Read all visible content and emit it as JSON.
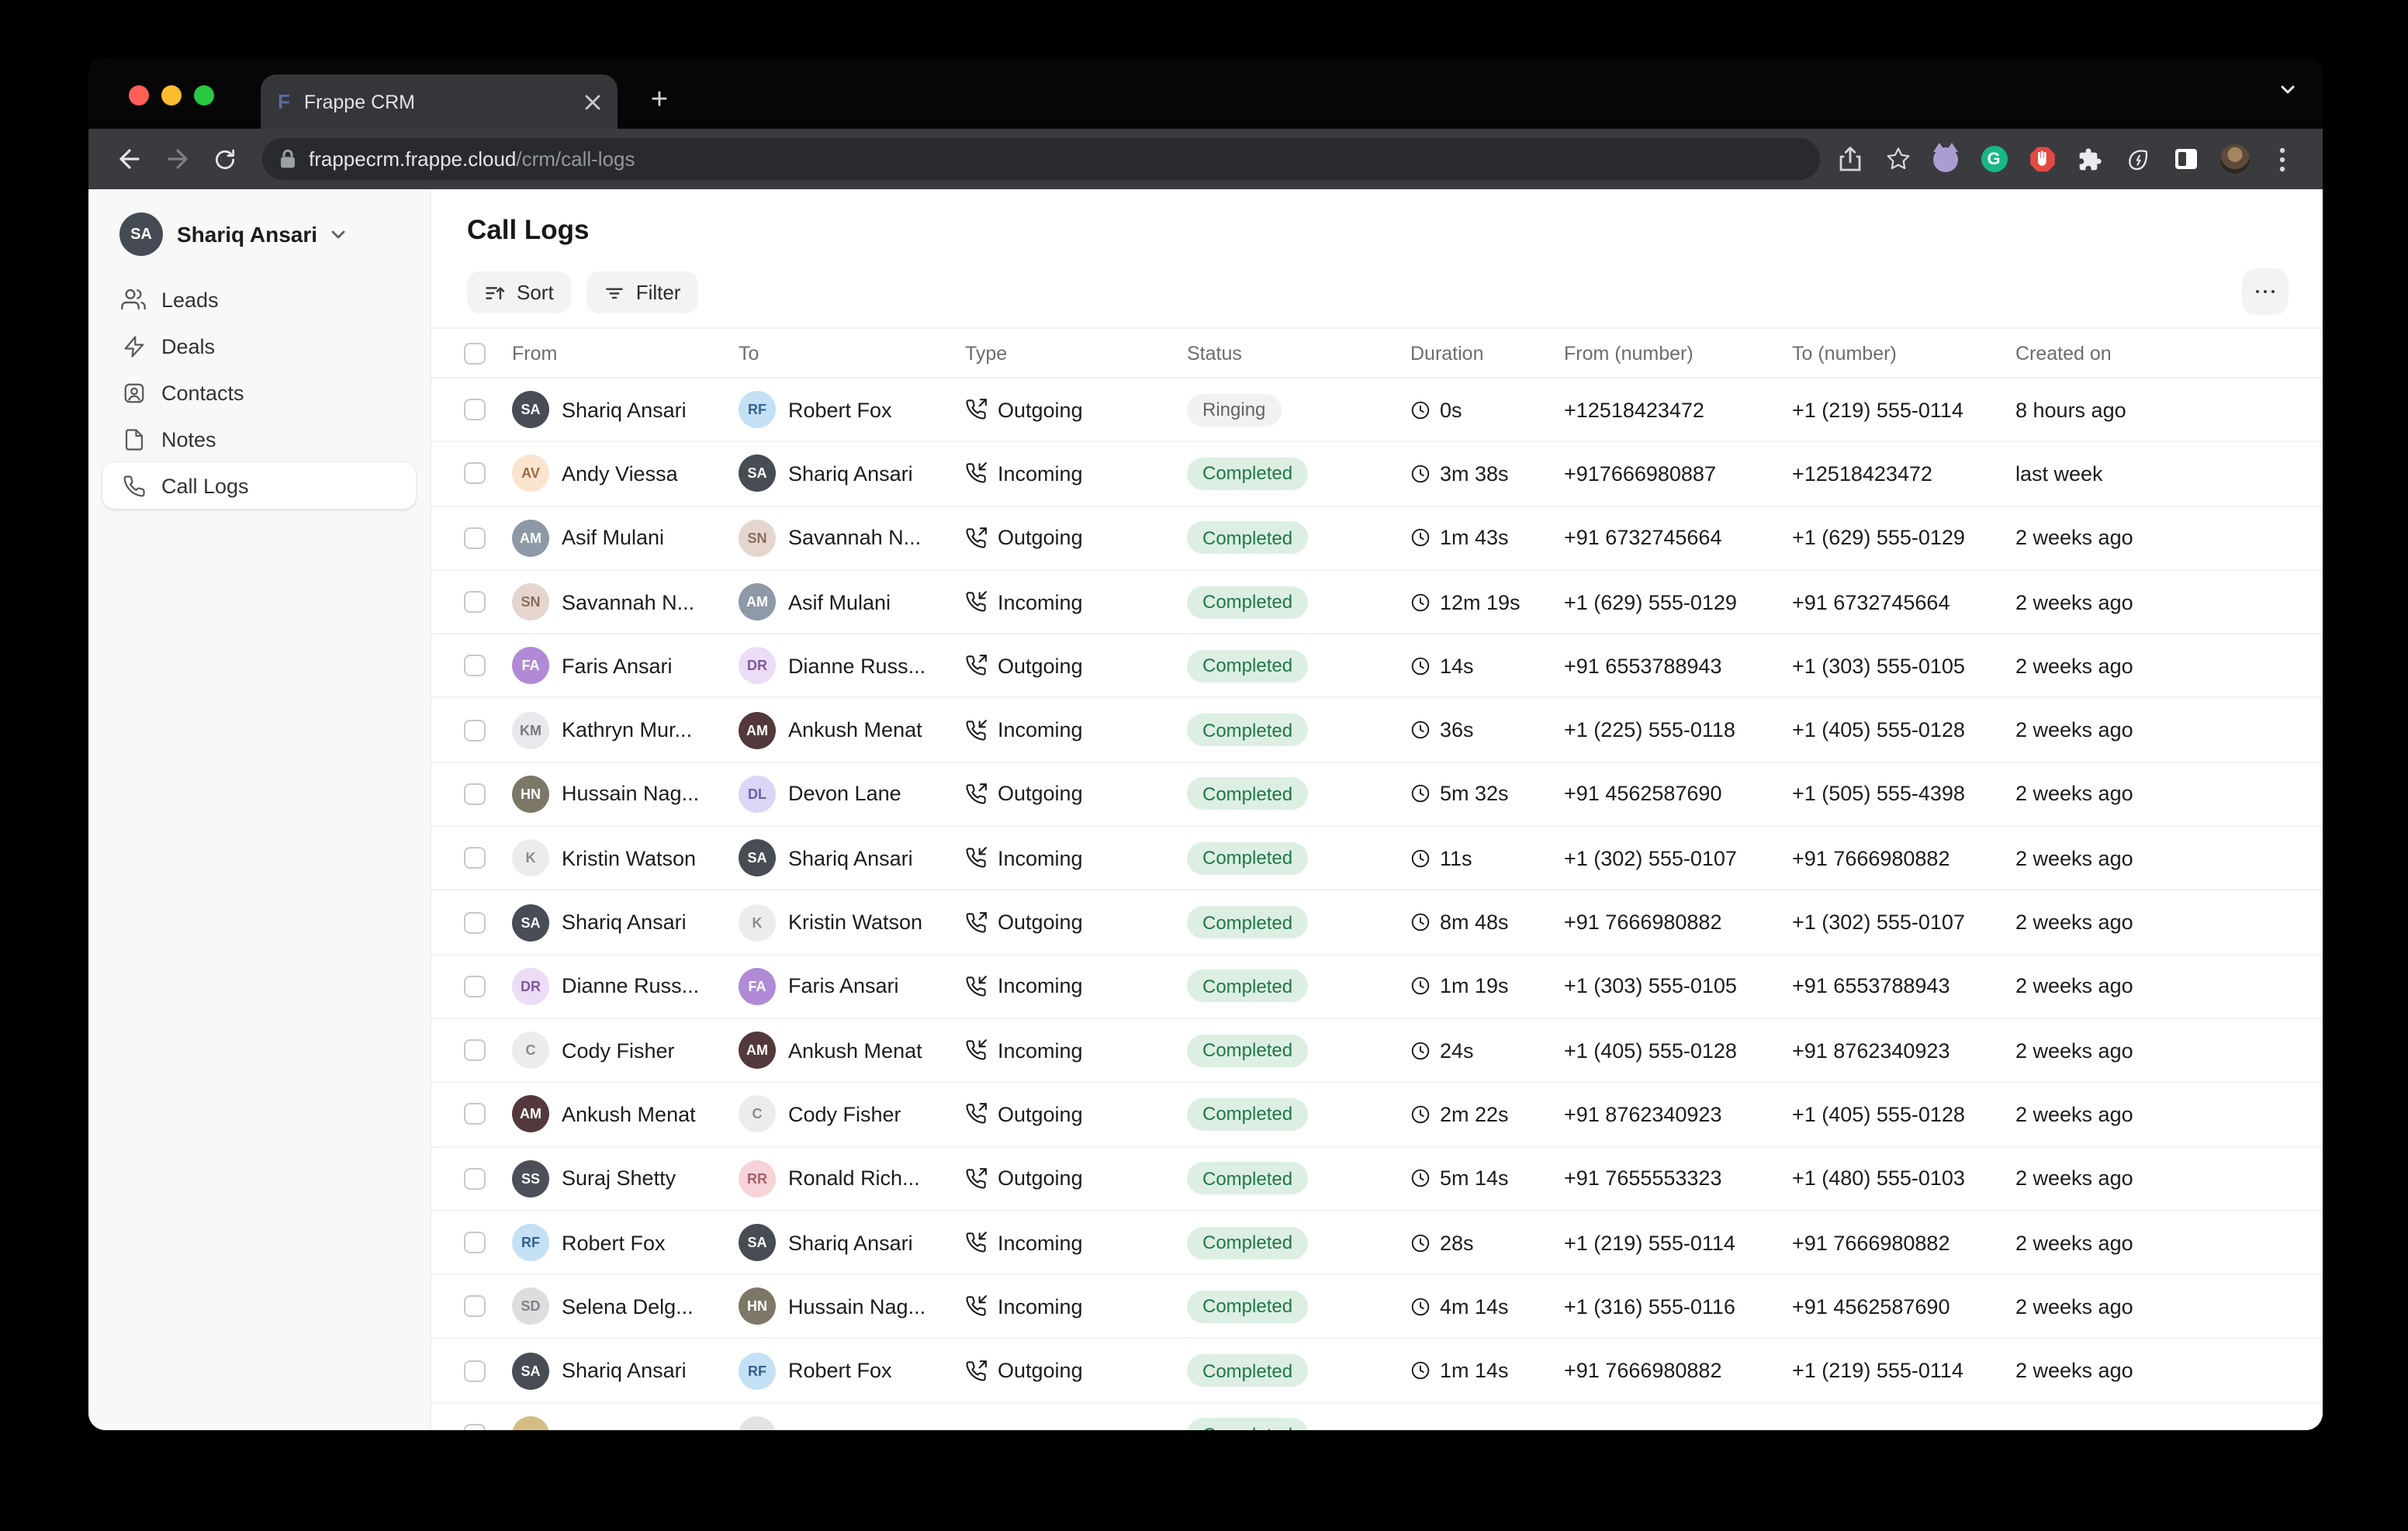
{
  "browser": {
    "tab": {
      "title": "Frappe CRM",
      "favicon_letter": "F"
    },
    "new_tab_label": "+",
    "url": {
      "host": "frappecrm.frappe.cloud",
      "path": "/crm/call-logs"
    },
    "toolbar_icons": [
      "back-icon",
      "forward-icon",
      "reload-icon",
      "lock-icon",
      "share-icon",
      "bookmark-star-icon",
      "octocat-extension-icon",
      "grammarly-extension-icon",
      "adblock-extension-icon",
      "extensions-puzzle-icon",
      "energy-leaf-icon",
      "sidebar-frame-icon",
      "profile-avatar",
      "menu-dots-icon"
    ],
    "grammarly_letter": "G"
  },
  "sidebar": {
    "user": {
      "name": "Shariq Ansari",
      "initials": "SA",
      "avatar_bg": "#454b55"
    },
    "items": [
      {
        "label": "Leads",
        "icon": "users-icon",
        "active": false
      },
      {
        "label": "Deals",
        "icon": "bolt-icon",
        "active": false
      },
      {
        "label": "Contacts",
        "icon": "contact-card-icon",
        "active": false
      },
      {
        "label": "Notes",
        "icon": "note-page-icon",
        "active": false
      },
      {
        "label": "Call Logs",
        "icon": "phone-icon",
        "active": true
      }
    ]
  },
  "main": {
    "title": "Call Logs",
    "sort_label": "Sort",
    "filter_label": "Filter",
    "colors": {
      "completed_bg": "#dcefe2",
      "completed_text": "#20774a",
      "ringing_bg": "#f1f1f1",
      "ringing_text": "#636363"
    },
    "table": {
      "columns": [
        "From",
        "To",
        "Type",
        "Status",
        "Duration",
        "From (number)",
        "To (number)",
        "Created on"
      ],
      "rows": [
        {
          "from": {
            "name": "Shariq Ansari",
            "initials": "SA",
            "bg": "#474c55",
            "fg": "#ffffff"
          },
          "to": {
            "name": "Robert Fox",
            "initials": "RF",
            "bg": "#c3e0f5",
            "fg": "#35618e"
          },
          "type": "Outgoing",
          "status": "Ringing",
          "duration": "0s",
          "from_number": "+12518423472",
          "to_number": "+1 (219) 555-0114",
          "created": "8 hours ago"
        },
        {
          "from": {
            "name": "Andy Viessa",
            "initials": "AV",
            "bg": "#fbe4ce",
            "fg": "#9a6b44"
          },
          "to": {
            "name": "Shariq Ansari",
            "initials": "SA",
            "bg": "#474c55",
            "fg": "#ffffff"
          },
          "type": "Incoming",
          "status": "Completed",
          "duration": "3m 38s",
          "from_number": "+917666980887",
          "to_number": "+12518423472",
          "created": "last week"
        },
        {
          "from": {
            "name": "Asif Mulani",
            "initials": "AM",
            "bg": "#8e99a7",
            "fg": "#ffffff"
          },
          "to": {
            "name": "Savannah N...",
            "initials": "SN",
            "bg": "#e4d6cf",
            "fg": "#8a6d5c"
          },
          "type": "Outgoing",
          "status": "Completed",
          "duration": "1m 43s",
          "from_number": "+91 6732745664",
          "to_number": "+1 (629) 555-0129",
          "created": "2 weeks ago"
        },
        {
          "from": {
            "name": "Savannah N...",
            "initials": "SN",
            "bg": "#e4d6cf",
            "fg": "#8a6d5c"
          },
          "to": {
            "name": "Asif Mulani",
            "initials": "AM",
            "bg": "#8e99a7",
            "fg": "#ffffff"
          },
          "type": "Incoming",
          "status": "Completed",
          "duration": "12m 19s",
          "from_number": "+1 (629) 555-0129",
          "to_number": "+91 6732745664",
          "created": "2 weeks ago"
        },
        {
          "from": {
            "name": "Faris Ansari",
            "initials": "FA",
            "bg": "#b08ad6",
            "fg": "#ffffff"
          },
          "to": {
            "name": "Dianne Russ...",
            "initials": "DR",
            "bg": "#ecdcf6",
            "fg": "#7d5a9a"
          },
          "type": "Outgoing",
          "status": "Completed",
          "duration": "14s",
          "from_number": "+91 6553788943",
          "to_number": "+1 (303) 555-0105",
          "created": "2 weeks ago"
        },
        {
          "from": {
            "name": "Kathryn Mur...",
            "initials": "KM",
            "bg": "#e9e9ed",
            "fg": "#77777d"
          },
          "to": {
            "name": "Ankush Menat",
            "initials": "AM",
            "bg": "#53393b",
            "fg": "#ffffff"
          },
          "type": "Incoming",
          "status": "Completed",
          "duration": "36s",
          "from_number": "+1 (225) 555-0118",
          "to_number": "+1 (405) 555-0128",
          "created": "2 weeks ago"
        },
        {
          "from": {
            "name": "Hussain Nag...",
            "initials": "HN",
            "bg": "#7d7767",
            "fg": "#ffffff"
          },
          "to": {
            "name": "Devon Lane",
            "initials": "DL",
            "bg": "#dcd5f6",
            "fg": "#6b5fa8"
          },
          "type": "Outgoing",
          "status": "Completed",
          "duration": "5m 32s",
          "from_number": "+91 4562587690",
          "to_number": "+1 (505) 555-4398",
          "created": "2 weeks ago"
        },
        {
          "from": {
            "name": "Kristin Watson",
            "initials": "K",
            "bg": "#ececec",
            "fg": "#8a8a8a"
          },
          "to": {
            "name": "Shariq Ansari",
            "initials": "SA",
            "bg": "#474c55",
            "fg": "#ffffff"
          },
          "type": "Incoming",
          "status": "Completed",
          "duration": "11s",
          "from_number": "+1 (302) 555-0107",
          "to_number": "+91 7666980882",
          "created": "2 weeks ago"
        },
        {
          "from": {
            "name": "Shariq Ansari",
            "initials": "SA",
            "bg": "#474c55",
            "fg": "#ffffff"
          },
          "to": {
            "name": "Kristin Watson",
            "initials": "K",
            "bg": "#ececec",
            "fg": "#8a8a8a"
          },
          "type": "Outgoing",
          "status": "Completed",
          "duration": "8m 48s",
          "from_number": "+91 7666980882",
          "to_number": "+1 (302) 555-0107",
          "created": "2 weeks ago"
        },
        {
          "from": {
            "name": "Dianne Russ...",
            "initials": "DR",
            "bg": "#ecdcf6",
            "fg": "#7d5a9a"
          },
          "to": {
            "name": "Faris Ansari",
            "initials": "FA",
            "bg": "#b08ad6",
            "fg": "#ffffff"
          },
          "type": "Incoming",
          "status": "Completed",
          "duration": "1m 19s",
          "from_number": "+1 (303) 555-0105",
          "to_number": "+91 6553788943",
          "created": "2 weeks ago"
        },
        {
          "from": {
            "name": "Cody Fisher",
            "initials": "C",
            "bg": "#ececec",
            "fg": "#8a8a8a"
          },
          "to": {
            "name": "Ankush Menat",
            "initials": "AM",
            "bg": "#53393b",
            "fg": "#ffffff"
          },
          "type": "Incoming",
          "status": "Completed",
          "duration": "24s",
          "from_number": "+1 (405) 555-0128",
          "to_number": "+91 8762340923",
          "created": "2 weeks ago"
        },
        {
          "from": {
            "name": "Ankush Menat",
            "initials": "AM",
            "bg": "#53393b",
            "fg": "#ffffff"
          },
          "to": {
            "name": "Cody Fisher",
            "initials": "C",
            "bg": "#ececec",
            "fg": "#8a8a8a"
          },
          "type": "Outgoing",
          "status": "Completed",
          "duration": "2m 22s",
          "from_number": "+91 8762340923",
          "to_number": "+1 (405) 555-0128",
          "created": "2 weeks ago"
        },
        {
          "from": {
            "name": "Suraj Shetty",
            "initials": "SS",
            "bg": "#4d4f58",
            "fg": "#ffffff"
          },
          "to": {
            "name": "Ronald Rich...",
            "initials": "RR",
            "bg": "#f6d3d8",
            "fg": "#a4606c"
          },
          "type": "Outgoing",
          "status": "Completed",
          "duration": "5m 14s",
          "from_number": "+91 7655553323",
          "to_number": "+1 (480) 555-0103",
          "created": "2 weeks ago"
        },
        {
          "from": {
            "name": "Robert Fox",
            "initials": "RF",
            "bg": "#c3e0f5",
            "fg": "#35618e"
          },
          "to": {
            "name": "Shariq Ansari",
            "initials": "SA",
            "bg": "#474c55",
            "fg": "#ffffff"
          },
          "type": "Incoming",
          "status": "Completed",
          "duration": "28s",
          "from_number": "+1 (219) 555-0114",
          "to_number": "+91 7666980882",
          "created": "2 weeks ago"
        },
        {
          "from": {
            "name": "Selena Delg...",
            "initials": "SD",
            "bg": "#dddddf",
            "fg": "#808086"
          },
          "to": {
            "name": "Hussain Nag...",
            "initials": "HN",
            "bg": "#7d7767",
            "fg": "#ffffff"
          },
          "type": "Incoming",
          "status": "Completed",
          "duration": "4m 14s",
          "from_number": "+1 (316) 555-0116",
          "to_number": "+91 4562587690",
          "created": "2 weeks ago"
        },
        {
          "from": {
            "name": "Shariq Ansari",
            "initials": "SA",
            "bg": "#474c55",
            "fg": "#ffffff"
          },
          "to": {
            "name": "Robert Fox",
            "initials": "RF",
            "bg": "#c3e0f5",
            "fg": "#35618e"
          },
          "type": "Outgoing",
          "status": "Completed",
          "duration": "1m 14s",
          "from_number": "+91 7666980882",
          "to_number": "+1 (219) 555-0114",
          "created": "2 weeks ago"
        }
      ],
      "partial_row": {
        "from_bg": "#d3bd85",
        "to_bg": "#e3e3e5",
        "status": "Completed"
      }
    }
  }
}
